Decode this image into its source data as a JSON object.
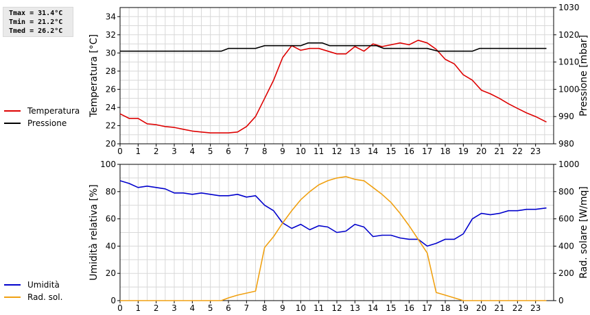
{
  "stats": {
    "tmax": "Tmax = 31.4°C",
    "tmin": "Tmin = 21.2°C",
    "tmed": "Tmed = 26.2°C"
  },
  "colors": {
    "temperature": "#dd0000",
    "pressure": "#000000",
    "humidity": "#0000cc",
    "solar": "#f0a010",
    "grid": "#d8d8d8"
  },
  "legend_top": [
    {
      "label": "Temperatura",
      "color": "#dd0000"
    },
    {
      "label": "Pressione",
      "color": "#000000"
    }
  ],
  "legend_bottom": [
    {
      "label": "Umidità",
      "color": "#0000cc"
    },
    {
      "label": "Rad. sol.",
      "color": "#f0a010"
    }
  ],
  "chart_data": [
    {
      "type": "line",
      "xlabel": "",
      "ylabel": "Temperatura [°C]",
      "y2label": "Pressione [mbar]",
      "xlim": [
        0,
        24
      ],
      "ylim": [
        20,
        35
      ],
      "y2lim": [
        980,
        1030
      ],
      "x_ticks": [
        "0",
        "1",
        "2",
        "3",
        "4",
        "5",
        "6",
        "7",
        "8",
        "9",
        "10",
        "11",
        "12",
        "13",
        "14",
        "15",
        "16",
        "17",
        "18",
        "19",
        "20",
        "21",
        "22",
        "23"
      ],
      "y_ticks": [
        "20",
        "22",
        "24",
        "26",
        "28",
        "30",
        "32",
        "34"
      ],
      "y2_ticks": [
        "980",
        "990",
        "1000",
        "1010",
        "1020",
        "1030"
      ],
      "grid": true,
      "series": [
        {
          "name": "Temperatura",
          "axis": "left",
          "points": [
            [
              0,
              23.3
            ],
            [
              0.5,
              22.8
            ],
            [
              1,
              22.8
            ],
            [
              1.5,
              22.2
            ],
            [
              2,
              22.1
            ],
            [
              2.5,
              21.9
            ],
            [
              3,
              21.8
            ],
            [
              3.5,
              21.6
            ],
            [
              4,
              21.4
            ],
            [
              4.5,
              21.3
            ],
            [
              5,
              21.2
            ],
            [
              5.5,
              21.2
            ],
            [
              6,
              21.2
            ],
            [
              6.5,
              21.3
            ],
            [
              7,
              21.9
            ],
            [
              7.5,
              23.0
            ],
            [
              8,
              25.0
            ],
            [
              8.5,
              27.0
            ],
            [
              9,
              29.5
            ],
            [
              9.5,
              30.8
            ],
            [
              10,
              30.3
            ],
            [
              10.5,
              30.5
            ],
            [
              11,
              30.5
            ],
            [
              11.5,
              30.2
            ],
            [
              12,
              29.9
            ],
            [
              12.5,
              29.9
            ],
            [
              13,
              30.7
            ],
            [
              13.5,
              30.2
            ],
            [
              14,
              31.0
            ],
            [
              14.5,
              30.7
            ],
            [
              15,
              30.9
            ],
            [
              15.5,
              31.1
            ],
            [
              16,
              30.9
            ],
            [
              16.5,
              31.4
            ],
            [
              17,
              31.1
            ],
            [
              17.5,
              30.4
            ],
            [
              18,
              29.3
            ],
            [
              18.5,
              28.8
            ],
            [
              19,
              27.6
            ],
            [
              19.5,
              27.0
            ],
            [
              20,
              25.9
            ],
            [
              20.5,
              25.5
            ],
            [
              21,
              25.0
            ],
            [
              21.5,
              24.4
            ],
            [
              22,
              23.9
            ],
            [
              22.5,
              23.4
            ],
            [
              23,
              23.0
            ],
            [
              23.6,
              22.4
            ]
          ]
        },
        {
          "name": "Pressione",
          "axis": "right",
          "points": [
            [
              0,
              1014
            ],
            [
              5.6,
              1014
            ],
            [
              6,
              1015
            ],
            [
              7.5,
              1015
            ],
            [
              8,
              1016
            ],
            [
              10,
              1016
            ],
            [
              10.4,
              1017
            ],
            [
              11.2,
              1017
            ],
            [
              11.6,
              1016
            ],
            [
              14.2,
              1016
            ],
            [
              14.6,
              1015
            ],
            [
              17,
              1015
            ],
            [
              17.6,
              1014
            ],
            [
              19.5,
              1014
            ],
            [
              19.9,
              1015
            ],
            [
              23.6,
              1015
            ]
          ]
        }
      ]
    },
    {
      "type": "line",
      "xlabel": "",
      "ylabel": "Umidità relativa [%]",
      "y2label": "Rad. solare [W/mq]",
      "xlim": [
        0,
        24
      ],
      "ylim": [
        0,
        100
      ],
      "y2lim": [
        0,
        1000
      ],
      "x_ticks": [
        "0",
        "1",
        "2",
        "3",
        "4",
        "5",
        "6",
        "7",
        "8",
        "9",
        "10",
        "11",
        "12",
        "13",
        "14",
        "15",
        "16",
        "17",
        "18",
        "19",
        "20",
        "21",
        "22",
        "23"
      ],
      "y_ticks": [
        "0",
        "20",
        "40",
        "60",
        "80",
        "100"
      ],
      "y2_ticks": [
        "0",
        "200",
        "400",
        "600",
        "800",
        "1000"
      ],
      "grid": true,
      "series": [
        {
          "name": "Umidità",
          "axis": "left",
          "points": [
            [
              0,
              88
            ],
            [
              0.5,
              86
            ],
            [
              1,
              83
            ],
            [
              1.5,
              84
            ],
            [
              2,
              83
            ],
            [
              2.5,
              82
            ],
            [
              3,
              79
            ],
            [
              3.5,
              79
            ],
            [
              4,
              78
            ],
            [
              4.5,
              79
            ],
            [
              5,
              78
            ],
            [
              5.5,
              77
            ],
            [
              6,
              77
            ],
            [
              6.5,
              78
            ],
            [
              7,
              76
            ],
            [
              7.5,
              77
            ],
            [
              8,
              70
            ],
            [
              8.5,
              66
            ],
            [
              9,
              57
            ],
            [
              9.5,
              53
            ],
            [
              10,
              56
            ],
            [
              10.5,
              52
            ],
            [
              11,
              55
            ],
            [
              11.5,
              54
            ],
            [
              12,
              50
            ],
            [
              12.5,
              51
            ],
            [
              13,
              56
            ],
            [
              13.5,
              54
            ],
            [
              14,
              47
            ],
            [
              14.5,
              48
            ],
            [
              15,
              48
            ],
            [
              15.5,
              46
            ],
            [
              16,
              45
            ],
            [
              16.5,
              45
            ],
            [
              17,
              40
            ],
            [
              17.5,
              42
            ],
            [
              18,
              45
            ],
            [
              18.5,
              45
            ],
            [
              19,
              49
            ],
            [
              19.5,
              60
            ],
            [
              20,
              64
            ],
            [
              20.5,
              63
            ],
            [
              21,
              64
            ],
            [
              21.5,
              66
            ],
            [
              22,
              66
            ],
            [
              22.5,
              67
            ],
            [
              23,
              67
            ],
            [
              23.6,
              68
            ]
          ]
        },
        {
          "name": "Rad. sol.",
          "axis": "right",
          "points": [
            [
              0,
              0
            ],
            [
              5.6,
              0
            ],
            [
              6,
              20
            ],
            [
              6.5,
              40
            ],
            [
              7.5,
              70
            ],
            [
              8,
              390
            ],
            [
              8.5,
              470
            ],
            [
              9,
              570
            ],
            [
              9.5,
              660
            ],
            [
              10,
              740
            ],
            [
              10.5,
              800
            ],
            [
              11,
              850
            ],
            [
              11.5,
              880
            ],
            [
              12,
              900
            ],
            [
              12.5,
              910
            ],
            [
              13,
              890
            ],
            [
              13.5,
              880
            ],
            [
              14,
              830
            ],
            [
              14.5,
              780
            ],
            [
              15,
              720
            ],
            [
              15.5,
              640
            ],
            [
              16,
              550
            ],
            [
              16.5,
              450
            ],
            [
              17,
              350
            ],
            [
              17.5,
              60
            ],
            [
              18,
              40
            ],
            [
              18.5,
              20
            ],
            [
              19,
              0
            ],
            [
              23.6,
              0
            ]
          ]
        }
      ]
    }
  ]
}
